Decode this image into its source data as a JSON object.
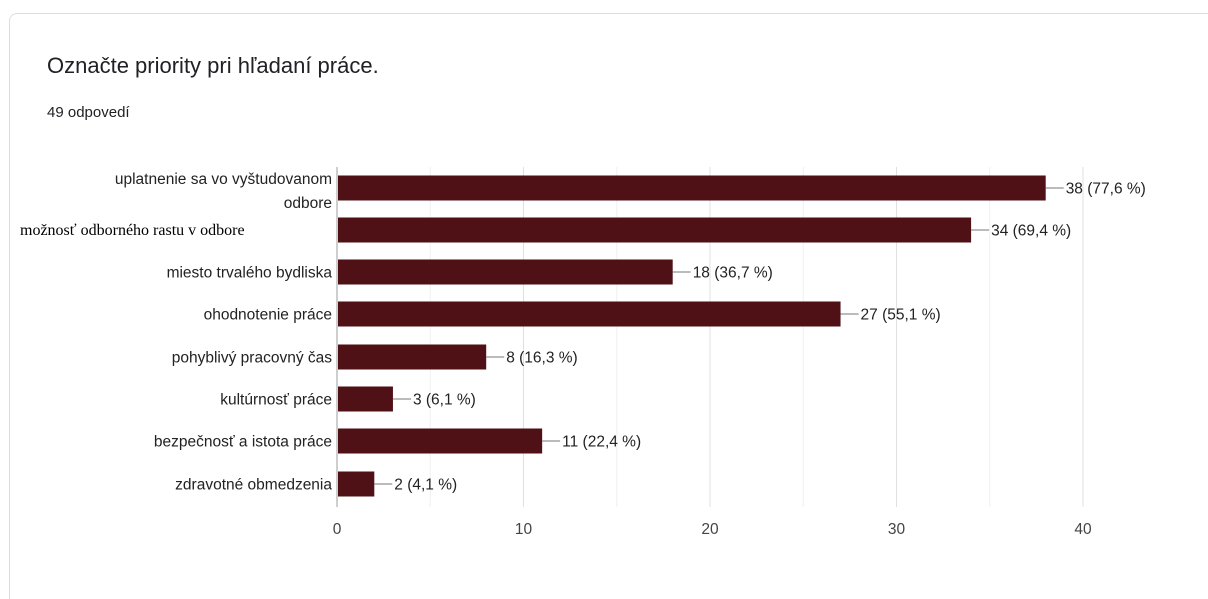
{
  "title": "Označte priority pri hľadaní práce.",
  "response_count": "49 odpovedí",
  "colors": {
    "bar": "#4f1016",
    "grid": "#e8e8e8",
    "axis": "#9e9e9e"
  },
  "chart_data": {
    "type": "bar",
    "orientation": "horizontal",
    "title": "Označte priority pri hľadaní práce.",
    "categories": [
      "uplatnenie sa vo vyštudovanom odbore",
      "možnosť odborného rastu v odbore",
      "miesto trvalého bydliska",
      "ohodnotenie práce",
      "pohyblivý pracovný čas",
      "kultúrnosť práce",
      "bezpečnosť a istota práce",
      "zdravotné obmedzenia"
    ],
    "category_lines": [
      [
        "uplatnenie sa vo vyštudovanom",
        "odbore"
      ],
      [
        "možnosť odborného rastu v odbore"
      ],
      [
        "miesto trvalého bydliska"
      ],
      [
        "ohodnotenie práce"
      ],
      [
        "pohyblivý pracovný čas"
      ],
      [
        "kultúrnosť práce"
      ],
      [
        "bezpečnosť a istota práce"
      ],
      [
        "zdravotné obmedzenia"
      ]
    ],
    "values": [
      38,
      34,
      18,
      27,
      8,
      3,
      11,
      2
    ],
    "data_labels": [
      "38 (77,6 %)",
      "34 (69,4 %)",
      "18 (36,7 %)",
      "27 (55,1 %)",
      "8 (16,3 %)",
      "3 (6,1 %)",
      "11 (22,4 %)",
      "2 (4,1 %)"
    ],
    "xlim": [
      0,
      40
    ],
    "ticks": [
      0,
      10,
      20,
      30,
      40
    ],
    "tick_labels": [
      "0",
      "10",
      "20",
      "30",
      "40"
    ],
    "grid": true,
    "legend": "none",
    "xlabel": "",
    "ylabel": ""
  }
}
